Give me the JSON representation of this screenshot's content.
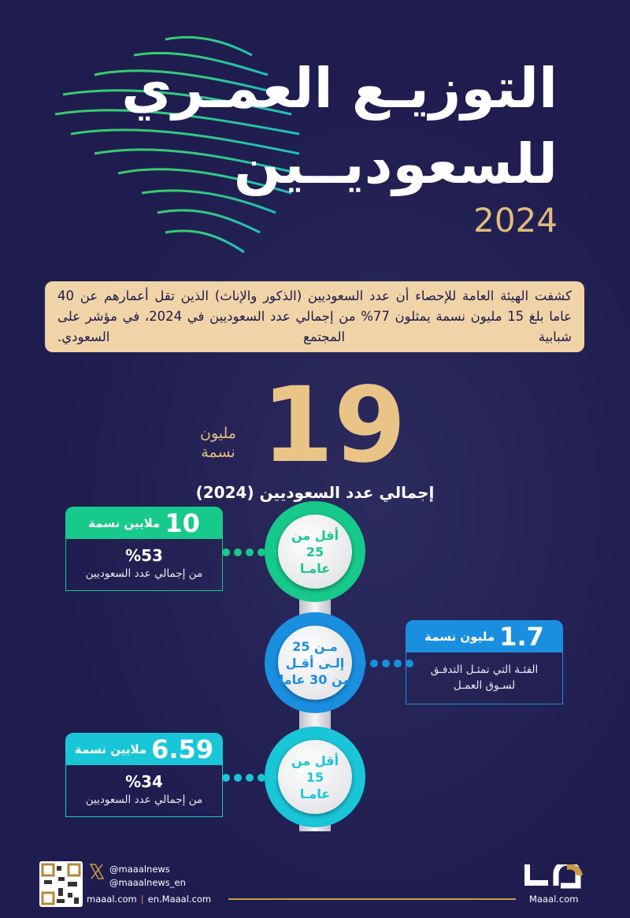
{
  "header": {
    "title_line1": "التوزيـع العمـري",
    "title_line2": "للسعوديــين",
    "year": "2024"
  },
  "intro": "كشفت الهيئة العامة للإحصاء أن عدد السعوديين (الذكور والإناث) الذين تقل أعمارهم عن 40 عاما بلغ 15 مليون نسمة يمثلون 77% من إجمالي عدد السعوديين في 2024، في مؤشر على شبابية المجتمع السعودي.",
  "total": {
    "value": "19",
    "unit_line1": "مليون",
    "unit_line2": "نسمة",
    "label": "إجمالي عدد السعوديين (2024)"
  },
  "colors": {
    "background": "#1f1d4f",
    "gold": "#e2bb7e",
    "green": "#17c98a",
    "blue": "#1a8fe0",
    "cyan": "#19c6d8",
    "paragraph_bg": "#f0d3a7"
  },
  "groups": [
    {
      "age_line1": "أقل من",
      "age_line2": "25",
      "age_line3": "عامـا",
      "value": "10",
      "unit": "ملايين نسمة",
      "percent": "%53",
      "desc": "من إجمالي عدد السعوديين",
      "color": "#17c98a"
    },
    {
      "age_line1": "مـن 25",
      "age_line2": "إلـى أقـل",
      "age_line3": "من 30 عاما",
      "value": "1.7",
      "unit": "مليون نسمة",
      "desc_line1": "الفئـة التي تمثـل التدفـق",
      "desc_line2": "لسـوق العمـل",
      "color": "#1a8fe0"
    },
    {
      "age_line1": "أقل من",
      "age_line2": "15",
      "age_line3": "عامـا",
      "value": "6.59",
      "unit": "ملايين نسمة",
      "percent": "%34",
      "desc": "من إجمالي عدد السعوديين",
      "color": "#19c6d8"
    }
  ],
  "footer": {
    "x_handle1": "@maaalnews",
    "x_handle2": "@maaalnews_en",
    "site1": "maaal.com",
    "separator": "|",
    "site2": "en.Maaal.com",
    "logo_text": "Maaal.com",
    "icons": [
      "x-logo-icon",
      "qr-code",
      "maaal-logo"
    ]
  }
}
